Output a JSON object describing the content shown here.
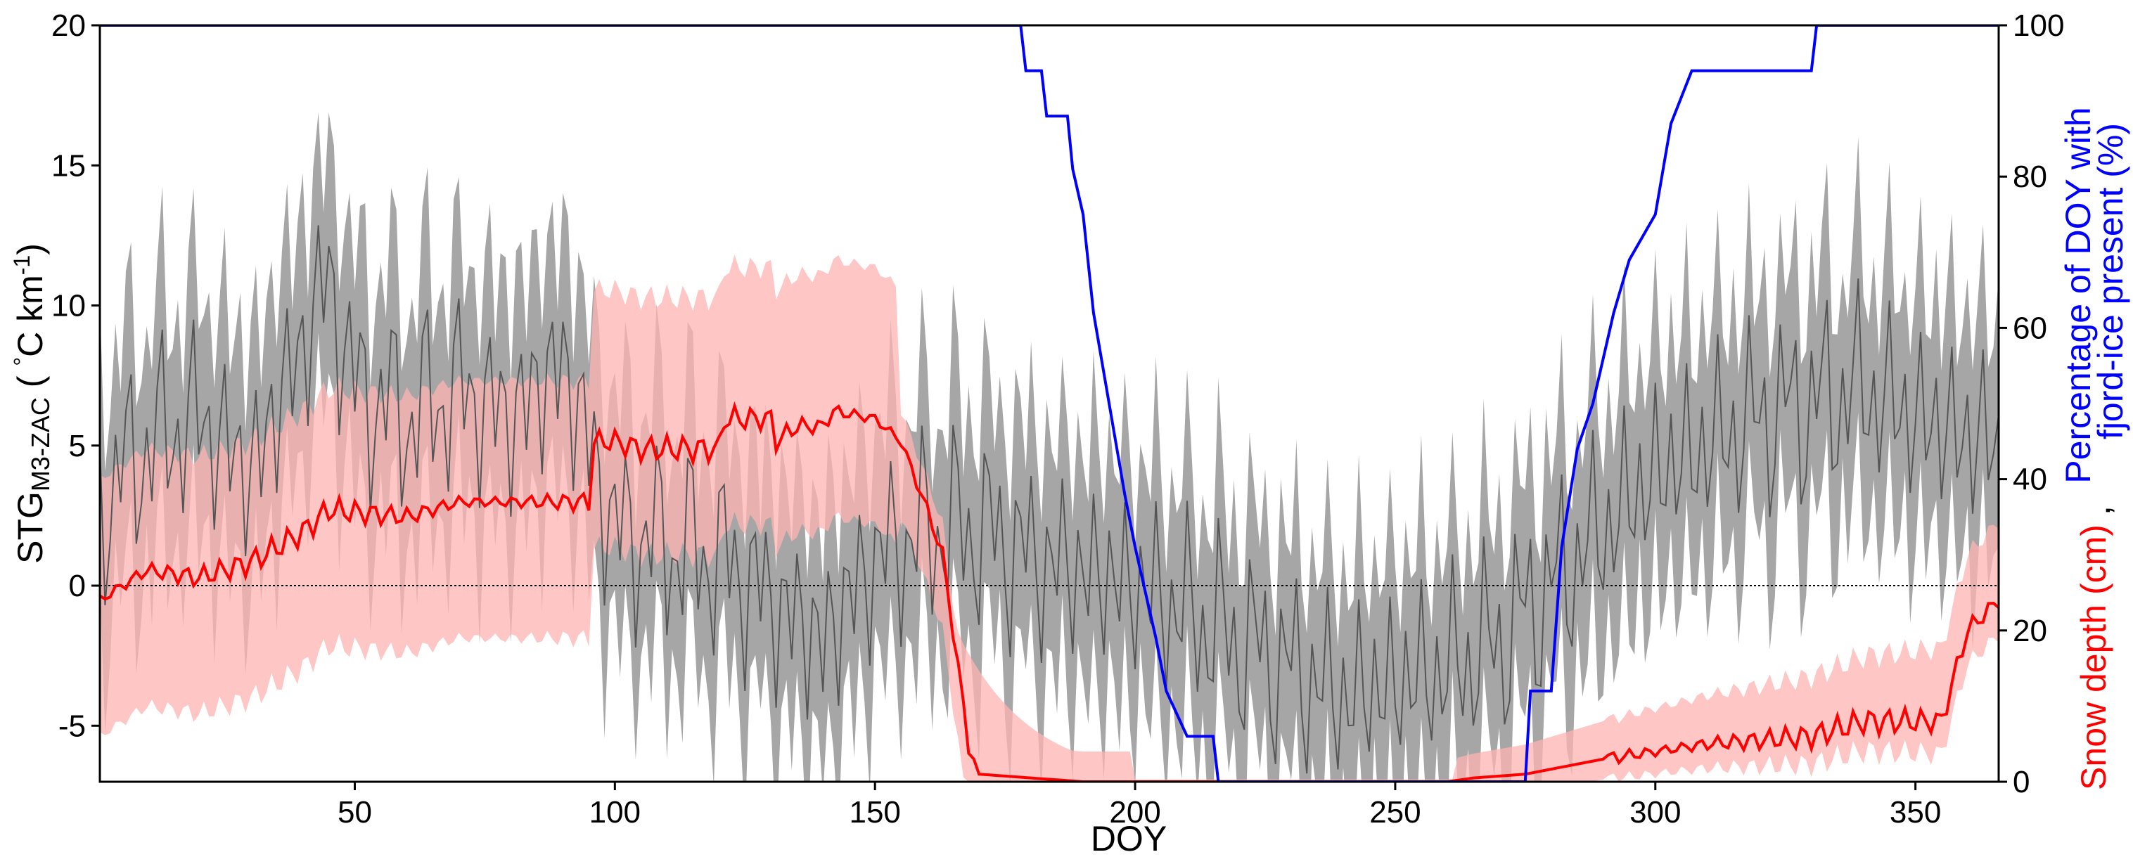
{
  "chart_data": {
    "type": "line",
    "xlabel": "DOY",
    "ylabel": {
      "main": "STG",
      "sub": "M3-ZAC",
      "unit_pre": " ( ",
      "unit_deg": "°",
      "unit_mid": "C km",
      "unit_exp": "-1",
      "unit_post": ")"
    },
    "y2label_line1": "Percentage of DOY with",
    "y2label_line2": "fjord-ice present (%)",
    "y2label_snow": "Snow depth (cm)",
    "y2label_sep": ",",
    "xlim": [
      1,
      366
    ],
    "ylim": [
      -7,
      20
    ],
    "y2lim": [
      0,
      100
    ],
    "xticks": [
      "50",
      "100",
      "150",
      "200",
      "250",
      "300",
      "350"
    ],
    "yticks": [
      "20",
      "15",
      "10",
      "5",
      "0",
      "-5"
    ],
    "y2ticks": [
      "100",
      "80",
      "60",
      "40",
      "20",
      "0"
    ],
    "zero_line": "dotted",
    "colors": {
      "stg": "#555555",
      "stg_band": "#a6a6a6",
      "snow": "#ff0000",
      "snow_band": "#ffb3b3",
      "ice": "#0000ff",
      "label_blue": "#0000ff",
      "label_red": "#ff0000"
    },
    "series": [
      {
        "axis": "left",
        "style": "thin line with grey min-max band",
        "keypoints": [
          [
            1,
            3
          ],
          [
            10,
            5
          ],
          [
            20,
            6
          ],
          [
            30,
            4
          ],
          [
            45,
            11
          ],
          [
            50,
            7
          ],
          [
            60,
            6
          ],
          [
            70,
            7
          ],
          [
            80,
            6
          ],
          [
            90,
            8
          ],
          [
            100,
            2
          ],
          [
            120,
            1
          ],
          [
            140,
            -2
          ],
          [
            150,
            1
          ],
          [
            160,
            2
          ],
          [
            170,
            2
          ],
          [
            180,
            1
          ],
          [
            200,
            0
          ],
          [
            220,
            -2
          ],
          [
            240,
            -4
          ],
          [
            260,
            -3
          ],
          [
            270,
            -2
          ],
          [
            280,
            0
          ],
          [
            290,
            2
          ],
          [
            300,
            4
          ],
          [
            320,
            6
          ],
          [
            340,
            7
          ],
          [
            350,
            6
          ],
          [
            365,
            5
          ]
        ],
        "band_half_width": 3.2
      },
      {
        "axis": "right",
        "style": "red line with pink band",
        "keypoints": [
          [
            1,
            24
          ],
          [
            10,
            28
          ],
          [
            20,
            27
          ],
          [
            30,
            29
          ],
          [
            40,
            33
          ],
          [
            45,
            36
          ],
          [
            60,
            35
          ],
          [
            70,
            37
          ],
          [
            90,
            37
          ],
          [
            95,
            37
          ],
          [
            96,
            45
          ],
          [
            100,
            45
          ],
          [
            105,
            44
          ],
          [
            120,
            44
          ],
          [
            121,
            48
          ],
          [
            130,
            48
          ],
          [
            131,
            45
          ],
          [
            135,
            47
          ],
          [
            140,
            47
          ],
          [
            142,
            49
          ],
          [
            150,
            48
          ],
          [
            155,
            45
          ],
          [
            160,
            36
          ],
          [
            163,
            30
          ],
          [
            165,
            20
          ],
          [
            168,
            5
          ],
          [
            170,
            1
          ],
          [
            190,
            0
          ],
          [
            260,
            0
          ],
          [
            265,
            0.5
          ],
          [
            275,
            1
          ],
          [
            290,
            3
          ],
          [
            310,
            5
          ],
          [
            330,
            6
          ],
          [
            340,
            8
          ],
          [
            355,
            8
          ],
          [
            360,
            20
          ],
          [
            366,
            24
          ]
        ]
      },
      {
        "axis": "right",
        "style": "blue step line",
        "keypoints": [
          [
            1,
            100
          ],
          [
            178,
            100
          ],
          [
            179,
            94
          ],
          [
            182,
            94
          ],
          [
            183,
            88
          ],
          [
            187,
            88
          ],
          [
            188,
            81
          ],
          [
            190,
            75
          ],
          [
            192,
            62
          ],
          [
            195,
            50
          ],
          [
            198,
            38
          ],
          [
            200,
            31
          ],
          [
            202,
            25
          ],
          [
            204,
            19
          ],
          [
            206,
            12
          ],
          [
            210,
            6
          ],
          [
            215,
            6
          ],
          [
            216,
            0
          ],
          [
            275,
            0
          ],
          [
            276,
            12
          ],
          [
            280,
            12
          ],
          [
            282,
            31
          ],
          [
            285,
            44
          ],
          [
            288,
            50
          ],
          [
            292,
            62
          ],
          [
            295,
            69
          ],
          [
            300,
            75
          ],
          [
            303,
            87
          ],
          [
            307,
            94
          ],
          [
            330,
            94
          ],
          [
            331,
            100
          ],
          [
            366,
            100
          ]
        ]
      }
    ]
  }
}
